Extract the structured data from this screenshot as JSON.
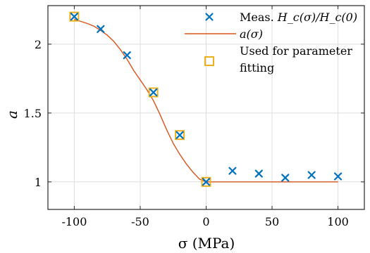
{
  "chart_data": {
    "type": "line",
    "xlabel": "σ (MPa)",
    "ylabel": "a",
    "xlim": [
      -120,
      120
    ],
    "ylim": [
      0.8,
      2.28
    ],
    "xticks": [
      -100,
      -50,
      0,
      50,
      100
    ],
    "xtick_labels": [
      "-100",
      "-50",
      "0",
      "50",
      "100"
    ],
    "yticks": [
      1,
      1.5,
      2
    ],
    "ytick_labels": [
      "1",
      "1.5",
      "2"
    ],
    "grid": true,
    "legend_position": "top-right",
    "series": [
      {
        "name": "Meas. Hc(σ)/Hc(0)",
        "label_text": "Meas. ",
        "label_math": "H_c(σ)/H_c(0)",
        "kind": "scatter",
        "marker": "x",
        "color": "#0072BD",
        "x": [
          -100,
          -80,
          -60,
          -40,
          -20,
          0,
          20,
          40,
          60,
          80,
          100
        ],
        "y": [
          2.2,
          2.11,
          1.92,
          1.65,
          1.34,
          1.0,
          1.08,
          1.06,
          1.03,
          1.05,
          1.04
        ]
      },
      {
        "name": "a(σ)",
        "kind": "line",
        "color": "#D95319",
        "x": [
          -100,
          -95,
          -90,
          -85,
          -80,
          -75,
          -70,
          -65,
          -60,
          -55,
          -50,
          -45,
          -40,
          -35,
          -30,
          -25,
          -20,
          -15,
          -10,
          -5,
          0,
          5,
          10,
          20,
          40,
          60,
          80,
          100
        ],
        "y": [
          2.18,
          2.165,
          2.15,
          2.13,
          2.1,
          2.065,
          2.02,
          1.96,
          1.89,
          1.81,
          1.74,
          1.67,
          1.59,
          1.49,
          1.38,
          1.28,
          1.2,
          1.13,
          1.07,
          1.02,
          1.0,
          1.0,
          1.0,
          1.0,
          1.0,
          1.0,
          1.0,
          1.0
        ]
      },
      {
        "name": "Used for parameter fitting",
        "label_lines": [
          "Used for parameter",
          "fitting"
        ],
        "kind": "scatter",
        "marker": "square",
        "color": "#EDB120",
        "x": [
          -100,
          -40,
          -20,
          0
        ],
        "y": [
          2.2,
          1.65,
          1.34,
          1.0
        ]
      }
    ]
  }
}
